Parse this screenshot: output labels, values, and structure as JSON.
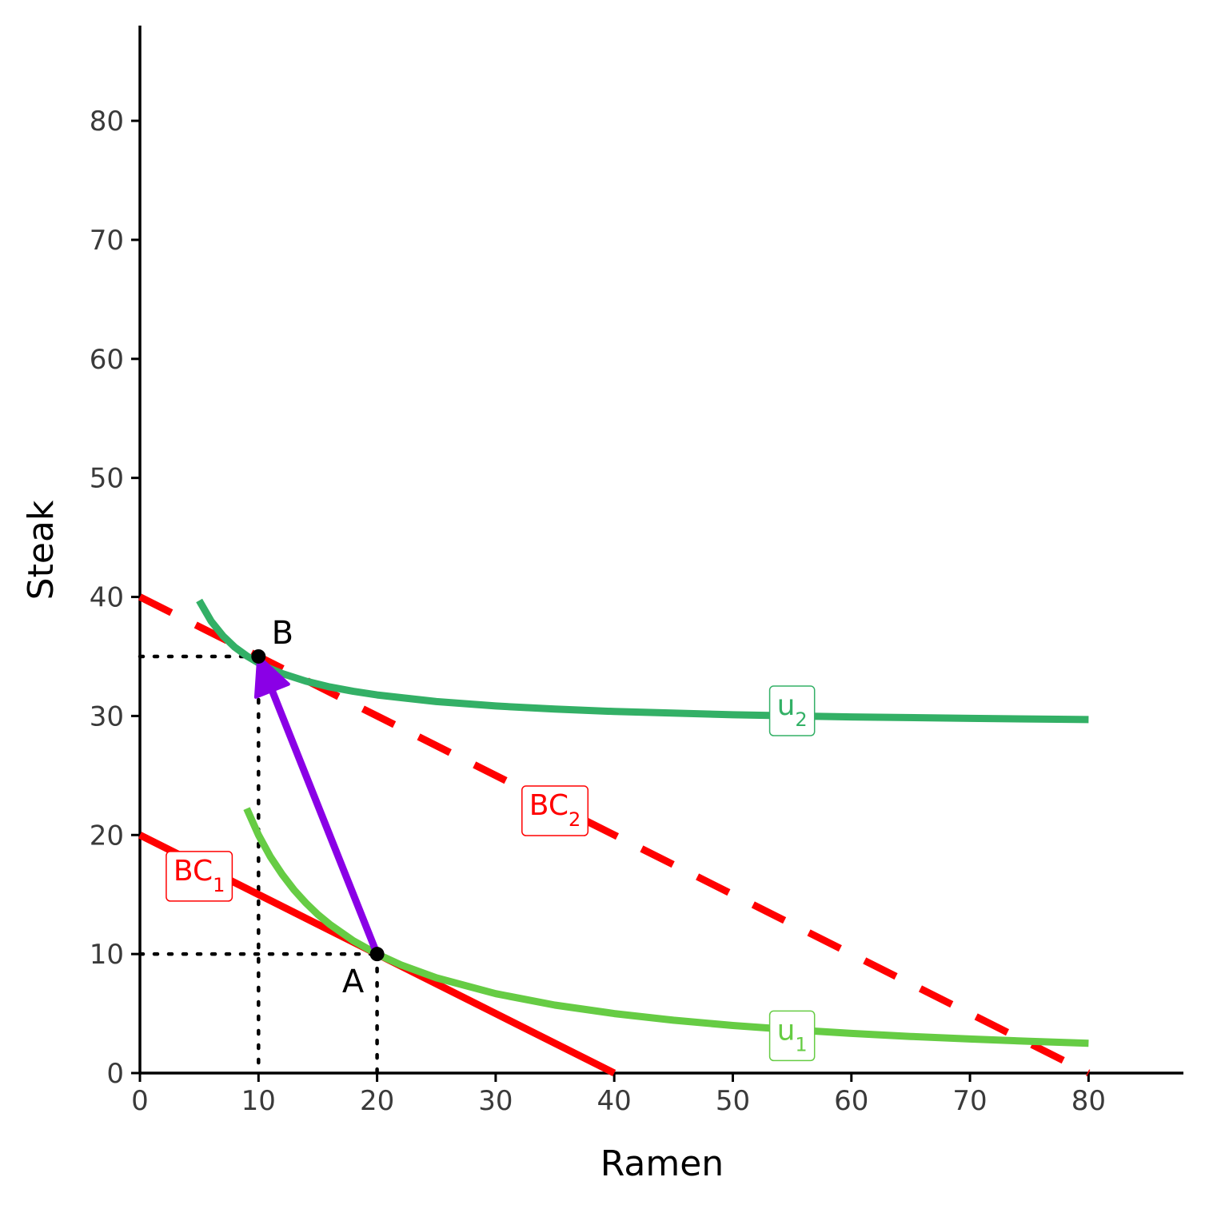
{
  "chart_data": {
    "type": "line",
    "title": "",
    "xlabel": "Ramen",
    "ylabel": "Steak",
    "xlim": [
      0,
      88
    ],
    "ylim": [
      0,
      88
    ],
    "x_ticks": [
      0,
      10,
      20,
      30,
      40,
      50,
      60,
      70,
      80
    ],
    "y_ticks": [
      0,
      10,
      20,
      30,
      40,
      50,
      60,
      70,
      80
    ],
    "grid": false,
    "series": [
      {
        "name": "BC1",
        "label_main": "BC",
        "label_sub": "1",
        "style": "solid",
        "color": "#ff0000",
        "x": [
          0,
          40
        ],
        "y": [
          20,
          0
        ],
        "label_at": [
          5,
          17
        ]
      },
      {
        "name": "BC2",
        "label_main": "BC",
        "label_sub": "2",
        "style": "dashed",
        "color": "#ff0000",
        "x": [
          0,
          80
        ],
        "y": [
          40,
          0
        ],
        "label_at": [
          35,
          22.5
        ]
      },
      {
        "name": "u1",
        "label_main": "u",
        "label_sub": "1",
        "style": "solid",
        "color": "#66cc44",
        "x": [
          9,
          10,
          11,
          12,
          13,
          14,
          15,
          16,
          18,
          20,
          22,
          25,
          30,
          35,
          40,
          45,
          50,
          55,
          60,
          65,
          70,
          75,
          80
        ],
        "y": [
          22.22,
          20.0,
          18.18,
          16.67,
          15.38,
          14.29,
          13.33,
          12.5,
          11.11,
          10.0,
          9.09,
          8.0,
          6.67,
          5.71,
          5.0,
          4.44,
          4.0,
          3.64,
          3.33,
          3.08,
          2.86,
          2.67,
          2.5
        ],
        "label_at": [
          55,
          3.6
        ]
      },
      {
        "name": "u2",
        "label_main": "u",
        "label_sub": "2",
        "style": "solid",
        "color": "#33b066",
        "x": [
          5,
          6,
          7,
          8,
          9,
          10,
          11,
          12,
          14,
          16,
          18,
          20,
          25,
          30,
          35,
          40,
          50,
          60,
          70,
          80
        ],
        "y": [
          39.7,
          37.97,
          36.73,
          35.78,
          35.05,
          34.46,
          33.97,
          33.56,
          32.92,
          32.44,
          32.07,
          31.77,
          31.21,
          30.84,
          30.58,
          30.38,
          30.1,
          29.92,
          29.8,
          29.7
        ],
        "label_at": [
          55,
          30.9
        ]
      }
    ],
    "points": [
      {
        "name": "A",
        "x": 20,
        "y": 10
      },
      {
        "name": "B",
        "x": 10,
        "y": 35
      }
    ],
    "arrow": {
      "from": [
        20,
        10
      ],
      "to": [
        10,
        35
      ],
      "color": "#8a00e6"
    },
    "colors": {
      "axis": "#000000",
      "guide": "#000000"
    }
  }
}
